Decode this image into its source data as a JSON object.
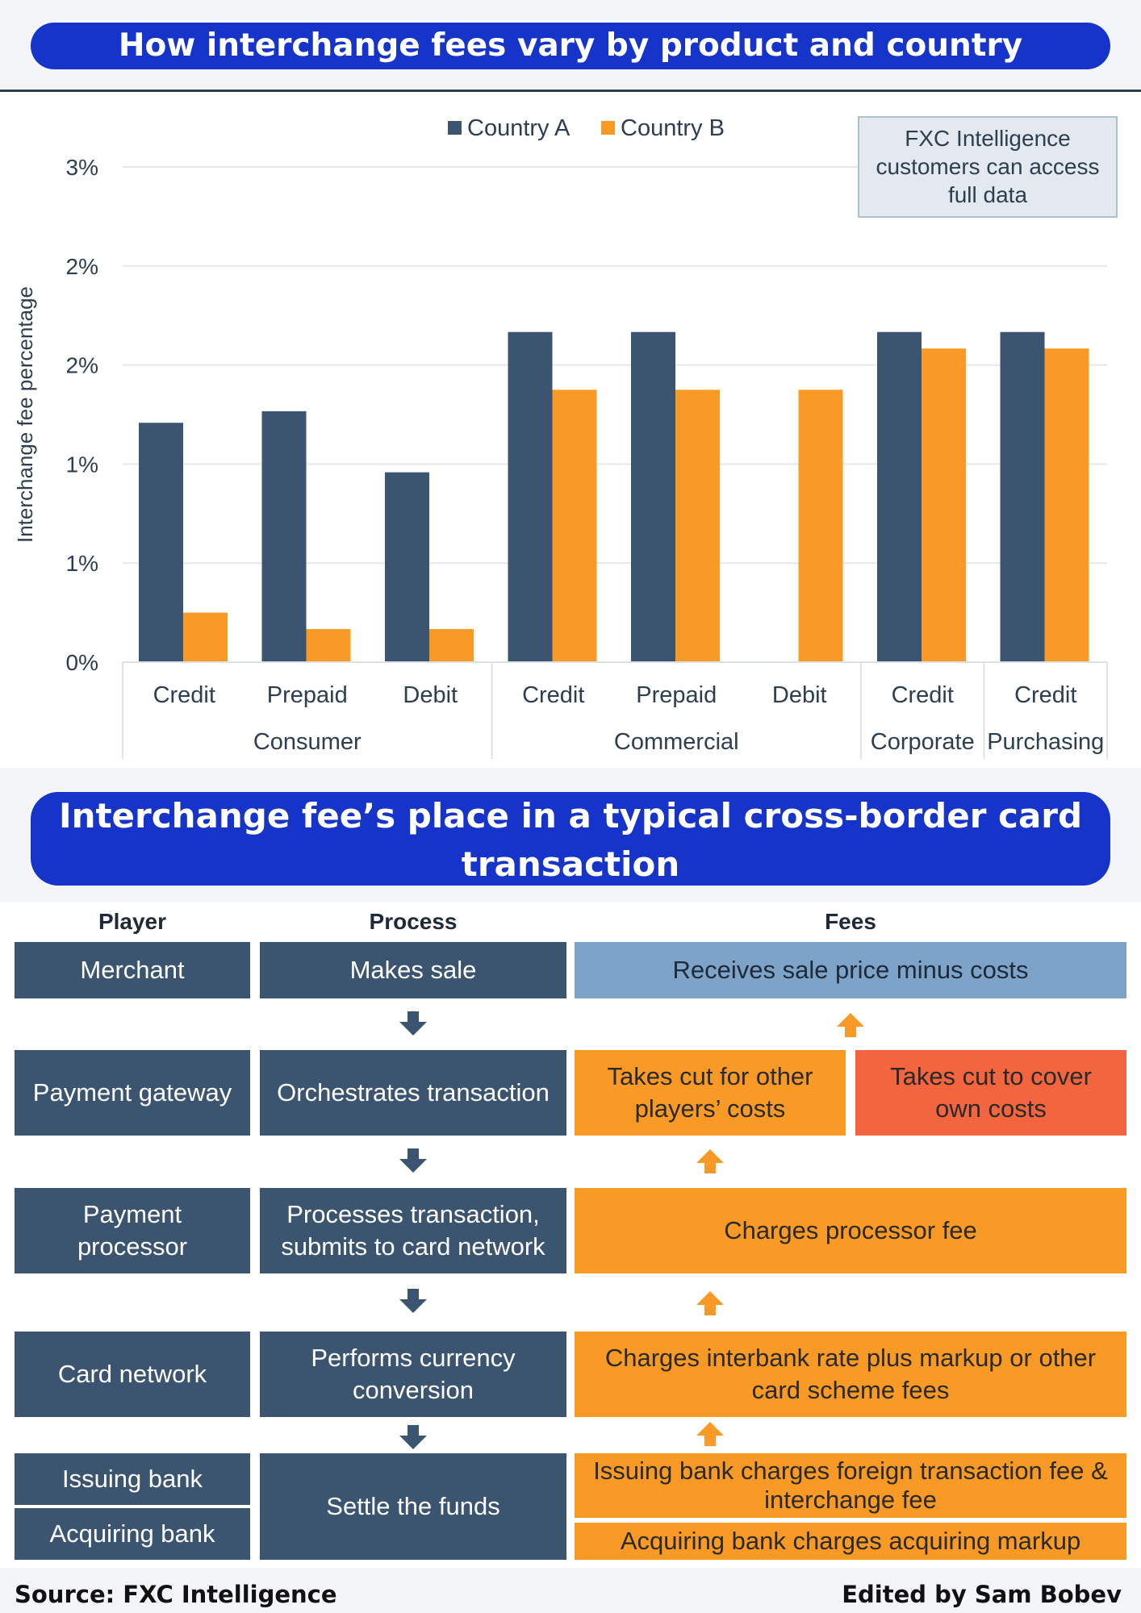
{
  "banners": {
    "top": "How interchange fees vary by product and country",
    "bottom": "Interchange fee’s place in a typical cross-border card transaction"
  },
  "chart_data": {
    "type": "bar",
    "title": "How interchange fees vary by product and country",
    "ylabel": "Interchange fee percentage",
    "xlabel": "",
    "ylim": [
      0,
      3
    ],
    "y_tick_labels": [
      "0%",
      "1%",
      "1%",
      "2%",
      "2%",
      "3%"
    ],
    "categories": [
      "Credit",
      "Prepaid",
      "Debit",
      "Credit",
      "Prepaid",
      "Debit",
      "Credit",
      "Credit"
    ],
    "groups": [
      {
        "label": "Consumer",
        "count": 3
      },
      {
        "label": "Commercial",
        "count": 3
      },
      {
        "label": "Corporate",
        "count": 1
      },
      {
        "label": "Purchasing",
        "count": 1
      }
    ],
    "series": [
      {
        "name": "Country A",
        "color": "#3b5470",
        "values": [
          1.45,
          1.52,
          1.15,
          2.0,
          2.0,
          null,
          2.0,
          2.0
        ]
      },
      {
        "name": "Country B",
        "color": "#f89a25",
        "values": [
          0.3,
          0.2,
          0.2,
          1.65,
          1.65,
          1.65,
          1.9,
          1.9
        ]
      }
    ],
    "legend_position": "top-center",
    "grid": true
  },
  "note": "FXC Intelligence customers can access full data",
  "flow": {
    "headers": {
      "player": "Player",
      "process": "Process",
      "fees": "Fees"
    },
    "players": [
      "Merchant",
      "Payment gateway",
      "Payment processor",
      "Card network",
      "Issuing bank",
      "Acquiring bank"
    ],
    "processes": [
      "Makes sale",
      "Orchestrates transaction",
      "Processes transaction, submits to card network",
      "Performs currency conversion",
      "Settle the funds"
    ],
    "fees": {
      "merchant": "Receives sale price minus costs",
      "gateway_other": "Takes cut for other players’ costs",
      "gateway_own": "Takes cut to cover own costs",
      "processor": "Charges processor fee",
      "network": "Charges interbank rate plus markup or other card scheme fees",
      "issuing": "Issuing bank charges foreign transaction fee & interchange fee",
      "acquiring": "Acquiring bank charges acquiring markup"
    },
    "colors": {
      "navy": "#3b5470",
      "light_blue": "#7ea3c8",
      "orange": "#f89a25",
      "red": "#f2653f"
    }
  },
  "footer": {
    "source": "Source: FXC Intelligence",
    "edited": "Edited by Sam Bobev"
  }
}
